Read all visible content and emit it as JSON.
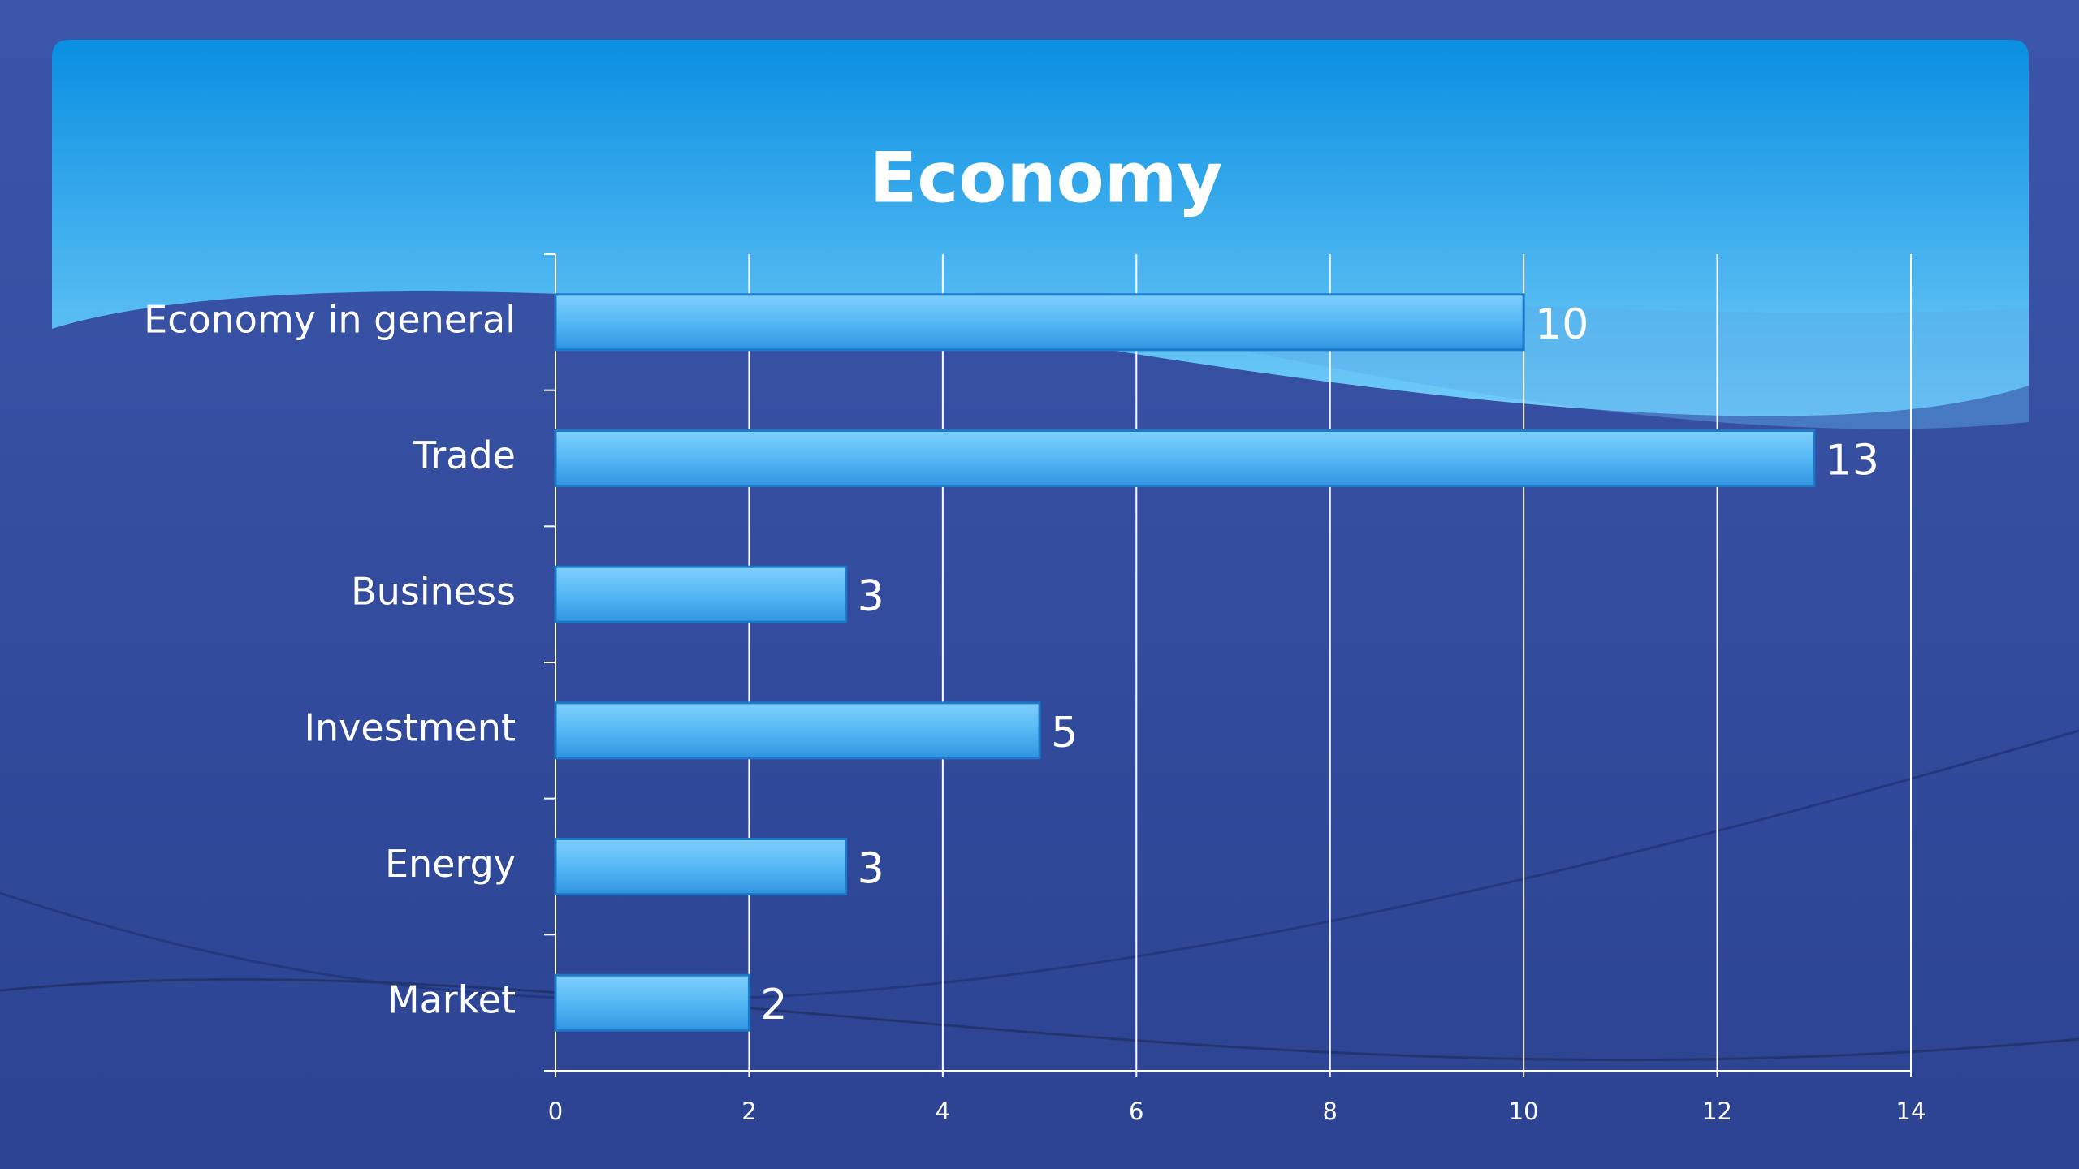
{
  "chart_data": {
    "type": "bar",
    "orientation": "horizontal",
    "title": "Economy",
    "categories": [
      "Economy in general",
      "Trade",
      "Business",
      "Investment",
      "Energy",
      "Market"
    ],
    "values": [
      10,
      13,
      3,
      5,
      3,
      2
    ],
    "color": "#4fb3f2",
    "xlim": [
      0,
      14
    ],
    "xticks": [
      0,
      2,
      4,
      6,
      8,
      10,
      12,
      14
    ],
    "grid": true
  }
}
